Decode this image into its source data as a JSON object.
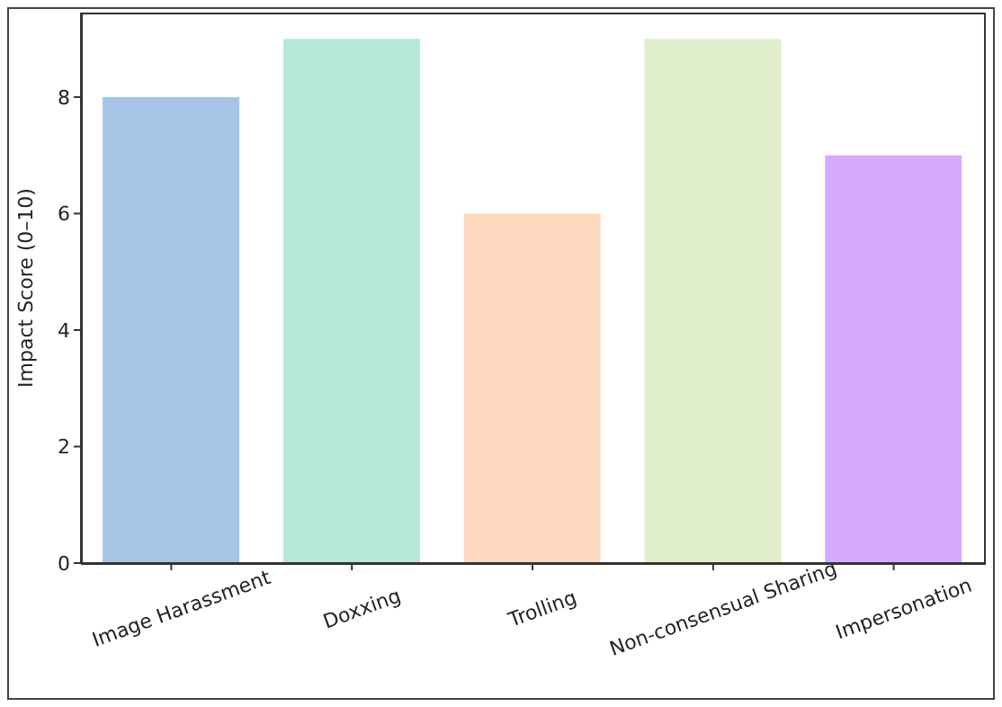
{
  "chart_data": {
    "type": "bar",
    "ylabel": "Impact Score (0–10)",
    "categories": [
      "Image Harassment",
      "Doxxing",
      "Trolling",
      "Non-consensual Sharing",
      "Impersonation"
    ],
    "values": [
      8,
      9,
      6,
      9,
      7
    ],
    "colors": [
      "#a6c4e5",
      "#b5e9d5",
      "#ffd9bf",
      "#e1eecb",
      "#d5aaff"
    ],
    "ylim": [
      0,
      9.45
    ],
    "yticks": [
      0,
      2,
      4,
      6,
      8
    ],
    "grid": false,
    "legend": false
  }
}
